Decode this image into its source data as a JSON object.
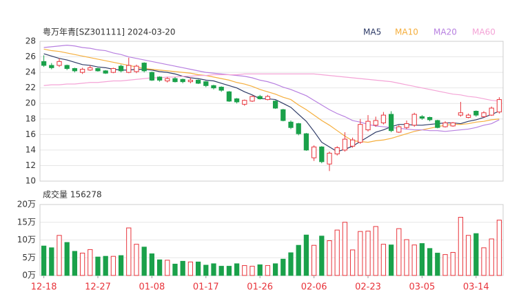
{
  "chart_data": {
    "type": "candlestick",
    "title": "粤万年青[SZ301111] 2024-03-20",
    "categories": [
      "12-18",
      null,
      null,
      null,
      null,
      null,
      null,
      "12-27",
      null,
      null,
      null,
      null,
      null,
      null,
      "01-08",
      null,
      null,
      null,
      null,
      null,
      null,
      "01-17",
      null,
      null,
      null,
      null,
      null,
      null,
      "01-26",
      null,
      null,
      null,
      null,
      null,
      null,
      "02-06",
      null,
      null,
      null,
      null,
      null,
      null,
      "02-23",
      null,
      null,
      null,
      null,
      null,
      null,
      "03-05",
      null,
      null,
      null,
      null,
      null,
      null,
      "03-14",
      null,
      null,
      null
    ],
    "open": [
      25.4,
      24.9,
      24.9,
      24.9,
      24.5,
      24.0,
      24.3,
      24.5,
      24.2,
      24.0,
      24.8,
      24.0,
      24.1,
      25.2,
      24.0,
      23.4,
      22.9,
      23.2,
      23.1,
      22.8,
      23.0,
      22.8,
      22.3,
      22.1,
      21.5,
      20.6,
      19.9,
      20.3,
      20.9,
      20.5,
      20.3,
      19.2,
      17.6,
      17.4,
      16.1,
      13.0,
      14.4,
      12.2,
      13.5,
      14.0,
      14.5,
      15.0,
      16.6,
      17.2,
      17.5,
      18.6,
      16.3,
      16.9,
      17.2,
      18.3,
      18.2,
      17.8,
      17.0,
      17.1,
      18.5,
      18.2,
      19.0,
      18.3,
      18.5,
      18.9
    ],
    "high": [
      26.2,
      25.2,
      25.8,
      25.0,
      24.6,
      24.6,
      24.9,
      24.6,
      24.3,
      24.6,
      25.0,
      25.9,
      25.0,
      25.3,
      24.1,
      23.5,
      23.4,
      23.4,
      23.2,
      23.3,
      23.1,
      22.9,
      22.4,
      22.2,
      21.6,
      20.7,
      20.5,
      21.0,
      21.1,
      21.1,
      20.4,
      19.3,
      17.8,
      17.5,
      16.2,
      14.6,
      14.5,
      13.8,
      14.5,
      16.3,
      15.6,
      18.0,
      18.5,
      18.3,
      18.9,
      19.0,
      17.2,
      17.8,
      18.8,
      18.5,
      18.3,
      17.9,
      17.7,
      17.6,
      20.2,
      18.7,
      19.1,
      19.0,
      19.6,
      20.8
    ],
    "low": [
      24.7,
      24.4,
      24.7,
      24.3,
      24.0,
      23.8,
      24.2,
      24.1,
      23.8,
      23.9,
      24.0,
      23.9,
      23.9,
      24.0,
      22.9,
      22.8,
      22.7,
      22.7,
      22.6,
      22.6,
      22.5,
      22.1,
      21.8,
      21.5,
      20.2,
      20.0,
      19.7,
      20.2,
      20.5,
      20.4,
      19.3,
      17.7,
      16.7,
      15.9,
      13.9,
      12.6,
      12.3,
      11.3,
      13.3,
      13.8,
      14.3,
      14.8,
      16.4,
      17.0,
      17.3,
      16.3,
      16.2,
      16.7,
      17.0,
      17.9,
      17.7,
      16.8,
      16.9,
      17.0,
      18.3,
      18.1,
      18.3,
      18.2,
      18.4,
      18.7
    ],
    "close": [
      24.9,
      24.6,
      25.4,
      24.5,
      24.2,
      24.4,
      24.6,
      24.2,
      23.9,
      24.5,
      24.2,
      24.9,
      24.8,
      24.2,
      23.0,
      23.0,
      23.2,
      22.8,
      22.8,
      23.0,
      22.6,
      22.3,
      22.0,
      21.7,
      20.3,
      20.2,
      20.4,
      20.9,
      20.6,
      20.9,
      19.4,
      17.8,
      16.9,
      16.1,
      14.0,
      14.4,
      12.5,
      13.6,
      14.3,
      15.4,
      15.3,
      17.3,
      17.7,
      17.8,
      18.5,
      16.5,
      17.0,
      17.4,
      18.6,
      18.1,
      17.9,
      16.9,
      17.5,
      17.5,
      18.8,
      18.5,
      18.5,
      18.8,
      19.4,
      20.5
    ],
    "up_color": "#e8333a",
    "down_color": "#1aa14a",
    "series": [
      {
        "name": "MA5",
        "color": "#2d3a66",
        "values": [
          26.4,
          26.1,
          25.8,
          25.6,
          25.3,
          25.0,
          24.9,
          24.7,
          24.6,
          24.4,
          24.3,
          24.3,
          24.4,
          24.4,
          24.3,
          24.1,
          24.0,
          23.8,
          23.5,
          23.3,
          23.2,
          23.0,
          22.9,
          22.6,
          22.3,
          22.0,
          21.5,
          21.1,
          20.6,
          20.6,
          20.5,
          20.0,
          19.5,
          18.6,
          17.7,
          16.4,
          15.0,
          14.4,
          13.8,
          14.1,
          14.5,
          15.1,
          15.7,
          16.3,
          16.6,
          17.0,
          17.3,
          17.3,
          17.2,
          17.2,
          17.3,
          17.4,
          17.5,
          17.5,
          17.4,
          17.7,
          17.9,
          18.2,
          18.6,
          19.0
        ]
      },
      {
        "name": "MA10",
        "color": "#f5ae3c",
        "values": [
          27.0,
          26.8,
          26.7,
          26.5,
          26.3,
          26.1,
          25.9,
          25.7,
          25.5,
          25.3,
          25.1,
          24.9,
          24.7,
          24.5,
          24.4,
          24.3,
          24.2,
          24.1,
          24.0,
          23.9,
          23.7,
          23.6,
          23.4,
          23.2,
          23.0,
          22.7,
          22.5,
          22.2,
          21.8,
          21.5,
          21.2,
          20.8,
          20.5,
          19.8,
          19.2,
          18.5,
          17.8,
          17.2,
          16.5,
          15.8,
          15.2,
          15.1,
          15.0,
          15.2,
          15.3,
          15.5,
          15.8,
          16.1,
          16.4,
          16.6,
          16.8,
          17.0,
          17.2,
          17.3,
          17.3,
          17.4,
          17.6,
          17.7,
          17.9,
          18.0
        ]
      },
      {
        "name": "MA20",
        "color": "#b77fe0",
        "values": [
          27.2,
          27.3,
          27.4,
          27.5,
          27.4,
          27.2,
          27.1,
          26.9,
          26.8,
          26.5,
          26.3,
          26.0,
          25.8,
          25.6,
          25.4,
          25.2,
          25.0,
          24.8,
          24.6,
          24.4,
          24.2,
          24.0,
          23.9,
          23.8,
          23.7,
          23.6,
          23.5,
          23.3,
          23.0,
          22.8,
          22.5,
          22.1,
          21.8,
          21.4,
          21.0,
          20.4,
          19.8,
          19.2,
          18.7,
          18.3,
          17.8,
          17.6,
          17.3,
          17.1,
          17.0,
          16.9,
          16.8,
          16.7,
          16.6,
          16.6,
          16.5,
          16.5,
          16.4,
          16.5,
          16.6,
          16.7,
          16.9,
          17.2,
          17.4,
          17.9
        ]
      },
      {
        "name": "MA60",
        "color": "#f4a3d6",
        "values": [
          22.3,
          22.4,
          22.4,
          22.5,
          22.5,
          22.6,
          22.7,
          22.7,
          22.8,
          22.9,
          22.9,
          23.0,
          23.1,
          23.2,
          23.3,
          23.3,
          23.4,
          23.4,
          23.5,
          23.5,
          23.6,
          23.6,
          23.7,
          23.7,
          23.7,
          23.7,
          23.8,
          23.8,
          23.8,
          23.8,
          23.8,
          23.8,
          23.8,
          23.8,
          23.8,
          23.8,
          23.7,
          23.6,
          23.5,
          23.4,
          23.3,
          23.2,
          23.1,
          23.0,
          22.9,
          22.8,
          22.6,
          22.4,
          22.2,
          22.0,
          21.8,
          21.6,
          21.4,
          21.2,
          21.1,
          20.9,
          20.8,
          20.6,
          20.4,
          20.3
        ]
      }
    ],
    "ylim": [
      10,
      28
    ],
    "yticks": [
      10,
      12,
      14,
      16,
      18,
      20,
      22,
      24,
      26,
      28
    ],
    "grid": true,
    "volume": {
      "label": "成交量 156278",
      "values": [
        8.3,
        7.8,
        11.3,
        9.3,
        6.8,
        6.3,
        7.3,
        5.2,
        5.4,
        5.4,
        5.6,
        13.4,
        8.8,
        8.0,
        6.1,
        4.4,
        4.3,
        3.2,
        4.0,
        3.8,
        3.8,
        2.9,
        3.3,
        2.6,
        2.6,
        3.3,
        2.8,
        2.6,
        3.0,
        2.8,
        3.3,
        4.6,
        6.4,
        8.5,
        11.4,
        8.5,
        11.1,
        9.8,
        12.8,
        15.0,
        7.2,
        12.4,
        12.5,
        13.8,
        8.8,
        8.6,
        13.2,
        10.1,
        8.6,
        9.0,
        7.6,
        6.3,
        5.9,
        6.5,
        16.4,
        11.3,
        11.8,
        7.8,
        10.3,
        15.6
      ],
      "ylim": [
        0,
        20
      ],
      "yticks": [
        {
          "value": 0,
          "label": "0万"
        },
        {
          "value": 5,
          "label": "5万"
        },
        {
          "value": 10,
          "label": "10万"
        },
        {
          "value": 15,
          "label": "15万"
        },
        {
          "value": 20,
          "label": "20万"
        }
      ]
    }
  }
}
